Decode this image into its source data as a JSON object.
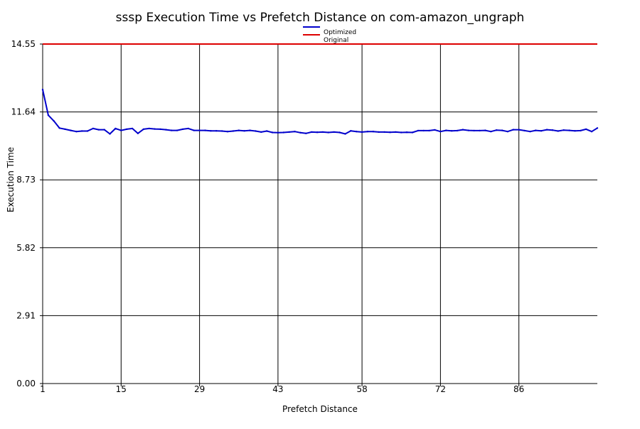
{
  "chart_data": {
    "type": "line",
    "title": "sssp Execution Time vs Prefetch Distance on com-amazon_ungraph",
    "xlabel": "Prefetch Distance",
    "ylabel": "Execution Time",
    "xlim": [
      1,
      100
    ],
    "ylim": [
      0,
      14.55
    ],
    "x_ticks": [
      1,
      15,
      29,
      43,
      58,
      72,
      86
    ],
    "y_ticks": [
      "0.00",
      "2.91",
      "5.82",
      "8.73",
      "11.64",
      "14.55"
    ],
    "grid": true,
    "legend_position": "top-center",
    "series": [
      {
        "name": "Optimized",
        "color": "#0000cc",
        "x": [
          1,
          2,
          3,
          4,
          5,
          6,
          7,
          8,
          9,
          10,
          11,
          12,
          13,
          14,
          15,
          16,
          17,
          18,
          19,
          20,
          21,
          22,
          23,
          24,
          25,
          26,
          27,
          28,
          29,
          30,
          31,
          32,
          33,
          34,
          35,
          36,
          37,
          38,
          39,
          40,
          41,
          42,
          43,
          44,
          45,
          46,
          47,
          48,
          49,
          50,
          51,
          52,
          53,
          54,
          55,
          56,
          57,
          58,
          59,
          60,
          61,
          62,
          63,
          64,
          65,
          66,
          67,
          68,
          69,
          70,
          71,
          72,
          73,
          74,
          75,
          76,
          77,
          78,
          79,
          80,
          81,
          82,
          83,
          84,
          85,
          86,
          87,
          88,
          89,
          90,
          91,
          92,
          93,
          94,
          95,
          96,
          97,
          98,
          99,
          100
        ],
        "values": [
          12.6,
          11.5,
          11.25,
          10.95,
          10.9,
          10.85,
          10.8,
          10.82,
          10.82,
          10.93,
          10.88,
          10.88,
          10.7,
          10.93,
          10.85,
          10.9,
          10.93,
          10.72,
          10.9,
          10.93,
          10.91,
          10.9,
          10.88,
          10.85,
          10.85,
          10.9,
          10.93,
          10.85,
          10.85,
          10.85,
          10.83,
          10.83,
          10.82,
          10.8,
          10.82,
          10.85,
          10.83,
          10.85,
          10.82,
          10.78,
          10.82,
          10.76,
          10.75,
          10.76,
          10.78,
          10.8,
          10.75,
          10.72,
          10.78,
          10.77,
          10.78,
          10.76,
          10.78,
          10.76,
          10.7,
          10.83,
          10.8,
          10.78,
          10.8,
          10.8,
          10.78,
          10.78,
          10.77,
          10.78,
          10.76,
          10.77,
          10.76,
          10.84,
          10.84,
          10.84,
          10.87,
          10.8,
          10.85,
          10.83,
          10.84,
          10.88,
          10.85,
          10.84,
          10.84,
          10.85,
          10.8,
          10.86,
          10.85,
          10.8,
          10.88,
          10.88,
          10.84,
          10.8,
          10.85,
          10.83,
          10.88,
          10.86,
          10.82,
          10.86,
          10.85,
          10.83,
          10.84,
          10.9,
          10.8,
          10.95
        ]
      },
      {
        "name": "Original",
        "color": "#dd0000",
        "x": [
          1,
          100
        ],
        "values": [
          14.55,
          14.55
        ]
      }
    ]
  }
}
